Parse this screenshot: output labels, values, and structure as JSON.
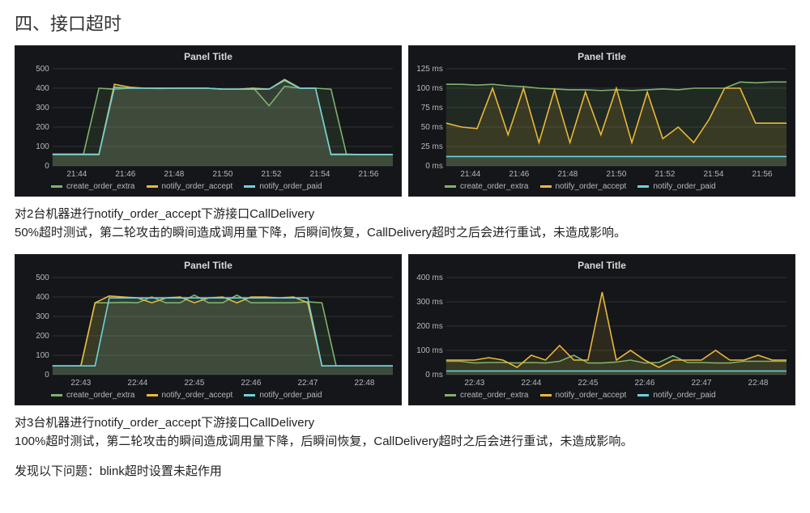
{
  "section_title": "四、接口超时",
  "colors": {
    "panel_bg": "#141619",
    "grid": "#2f3136",
    "axis_text": "#b7b8bc",
    "series": {
      "create_order_extra": "#7eb26d",
      "notify_order_accept": "#eab839",
      "notify_order_paid": "#6ed0e0"
    }
  },
  "legend_labels": {
    "s1": "create_order_extra",
    "s2": "notify_order_accept",
    "s3": "notify_order_paid"
  },
  "panel_title": "Panel Title",
  "row1": {
    "left": {
      "ylim": [
        0,
        500
      ],
      "ytick_step": 100,
      "xlabels": [
        "21:44",
        "21:46",
        "21:48",
        "21:50",
        "21:52",
        "21:54",
        "21:56"
      ],
      "series": {
        "create_order_extra": [
          60,
          60,
          60,
          400,
          395,
          400,
          400,
          398,
          400,
          400,
          400,
          395,
          395,
          400,
          310,
          410,
          400,
          400,
          395,
          60,
          58,
          58,
          58
        ],
        "notify_order_accept": [
          60,
          60,
          60,
          60,
          420,
          405,
          400,
          400,
          400,
          400,
          400,
          395,
          395,
          400,
          395,
          445,
          400,
          400,
          60,
          60,
          58,
          58,
          58
        ],
        "notify_order_paid": [
          58,
          58,
          58,
          58,
          405,
          400,
          400,
          400,
          400,
          400,
          400,
          395,
          395,
          395,
          395,
          440,
          399,
          400,
          58,
          58,
          58,
          58,
          58
        ]
      }
    },
    "right": {
      "ylim": [
        0,
        125
      ],
      "ytick_step": 25,
      "y_suffix": " ms",
      "xlabels": [
        "21:44",
        "21:46",
        "21:48",
        "21:50",
        "21:52",
        "21:54",
        "21:56"
      ],
      "series": {
        "create_order_extra": [
          105,
          105,
          104,
          105,
          103,
          102,
          100,
          99,
          98,
          98,
          97,
          98,
          97,
          98,
          99,
          98,
          100,
          100,
          100,
          108,
          107,
          108,
          108
        ],
        "notify_order_accept": [
          55,
          50,
          48,
          100,
          40,
          100,
          30,
          98,
          30,
          95,
          40,
          100,
          30,
          95,
          35,
          50,
          30,
          60,
          100,
          100,
          55,
          55,
          55
        ],
        "notify_order_paid": [
          12,
          12,
          12,
          12,
          12,
          12,
          12,
          12,
          12,
          12,
          12,
          12,
          12,
          12,
          12,
          12,
          12,
          12,
          12,
          12,
          12,
          12,
          12
        ]
      }
    }
  },
  "desc1_line1": "对2台机器进行notify_order_accept下游接口CallDelivery",
  "desc1_line2": "50%超时测试，第二轮攻击的瞬间造成调用量下降，后瞬间恢复，CallDelivery超时之后会进行重试，未造成影响。",
  "row2": {
    "left": {
      "ylim": [
        0,
        500
      ],
      "ytick_step": 100,
      "xlabels": [
        "22:43",
        "22:44",
        "22:45",
        "22:46",
        "22:47",
        "22:48"
      ],
      "series": {
        "create_order_extra": [
          45,
          45,
          45,
          370,
          370,
          372,
          370,
          400,
          370,
          370,
          410,
          370,
          370,
          410,
          370,
          370,
          370,
          370,
          375,
          370,
          45,
          45,
          45,
          45,
          45
        ],
        "notify_order_accept": [
          45,
          45,
          45,
          370,
          405,
          400,
          395,
          370,
          395,
          400,
          370,
          395,
          400,
          370,
          400,
          400,
          395,
          400,
          370,
          45,
          45,
          45,
          45,
          45,
          45
        ],
        "notify_order_paid": [
          45,
          45,
          45,
          45,
          395,
          395,
          395,
          395,
          395,
          395,
          395,
          395,
          395,
          395,
          395,
          395,
          395,
          395,
          395,
          45,
          45,
          45,
          45,
          45,
          45
        ]
      }
    },
    "right": {
      "ylim": [
        0,
        400
      ],
      "ytick_step": 100,
      "y_suffix": " ms",
      "xlabels": [
        "22:43",
        "22:44",
        "22:45",
        "22:46",
        "22:47",
        "22:48"
      ],
      "series": {
        "create_order_extra": [
          55,
          55,
          48,
          50,
          50,
          48,
          50,
          48,
          55,
          80,
          48,
          48,
          52,
          60,
          48,
          50,
          78,
          50,
          50,
          48,
          48,
          55,
          55,
          55,
          55
        ],
        "notify_order_accept": [
          60,
          60,
          60,
          70,
          60,
          30,
          80,
          60,
          120,
          60,
          60,
          340,
          60,
          100,
          60,
          30,
          60,
          60,
          60,
          100,
          60,
          60,
          80,
          60,
          60
        ],
        "notify_order_paid": [
          15,
          15,
          15,
          15,
          15,
          15,
          15,
          15,
          15,
          15,
          15,
          15,
          15,
          15,
          15,
          15,
          15,
          15,
          15,
          15,
          15,
          15,
          15,
          15,
          15
        ]
      }
    }
  },
  "desc2_line1": "对3台机器进行notify_order_accept下游接口CallDelivery",
  "desc2_line2": "100%超时测试，第二轮攻击的瞬间造成调用量下降，后瞬间恢复，CallDelivery超时之后会进行重试，未造成影响。",
  "desc3": "发现以下问题：blink超时设置未起作用"
}
